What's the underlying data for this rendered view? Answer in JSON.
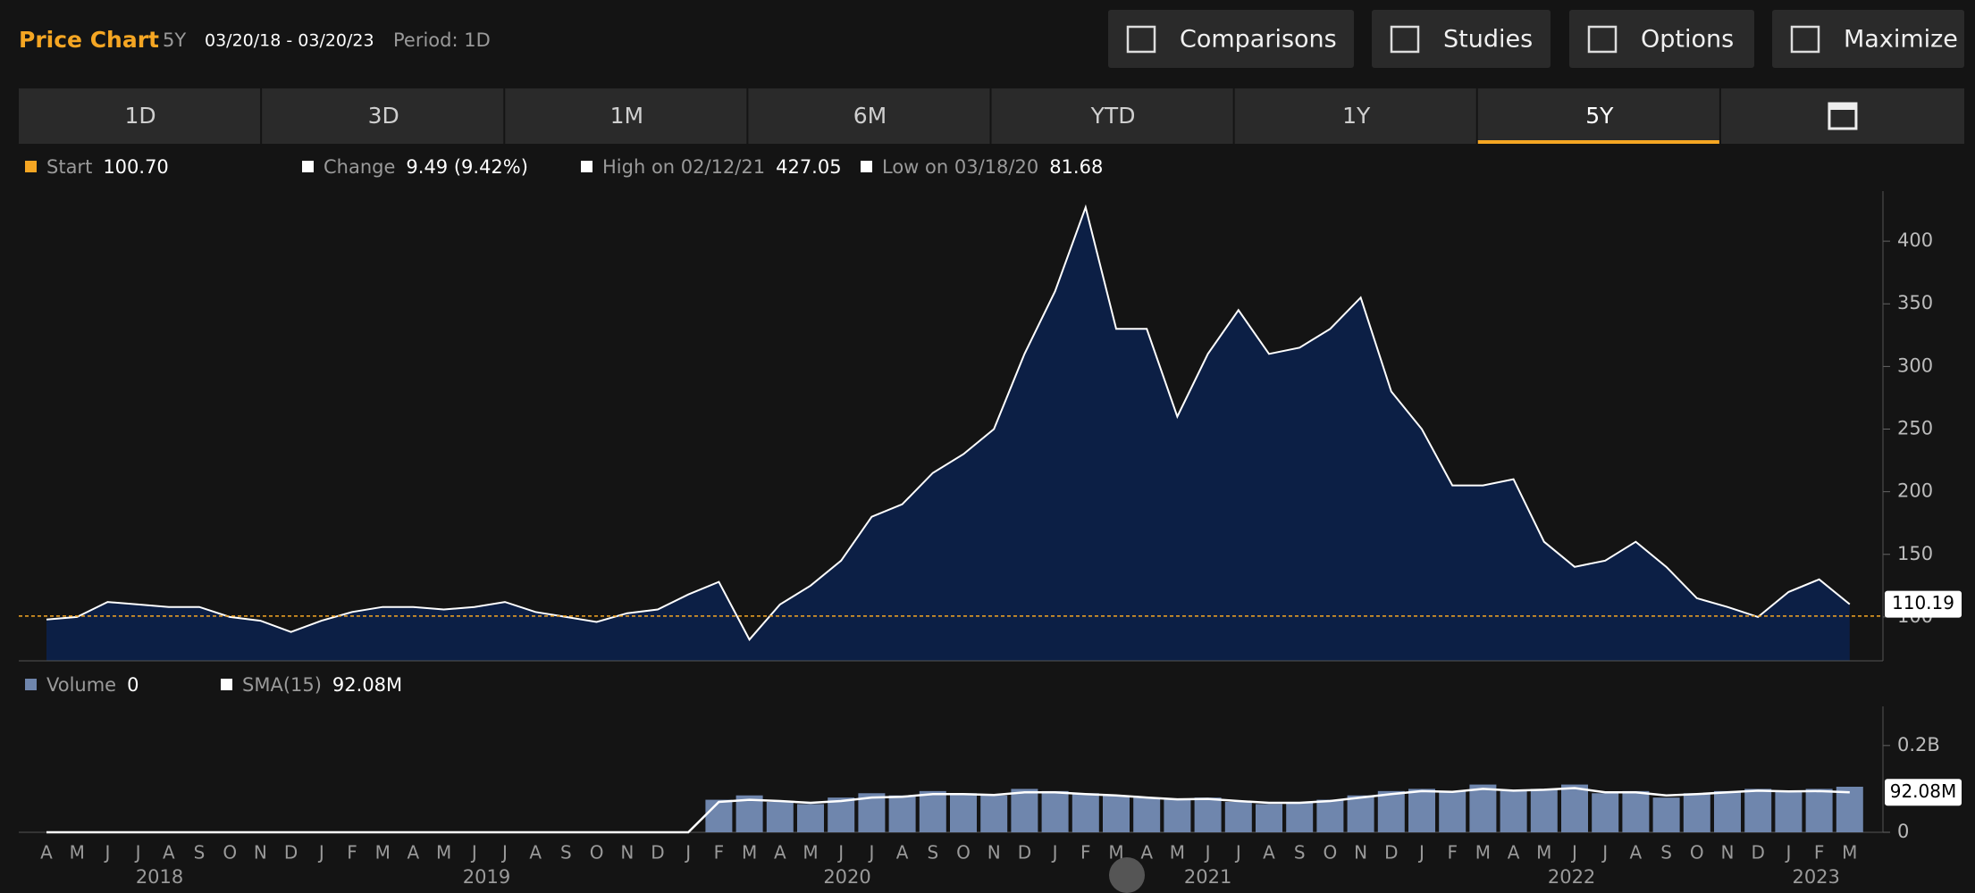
{
  "header": {
    "title": "Price Chart",
    "range": "5Y",
    "dates": "03/20/18 - 03/20/23",
    "period": "Period: 1D"
  },
  "buttons": [
    "Comparisons",
    "Studies",
    "Options",
    "Maximize"
  ],
  "tabs": {
    "items": [
      "1D",
      "3D",
      "1M",
      "6M",
      "YTD",
      "1Y",
      "5Y"
    ],
    "active": "5Y"
  },
  "stats": {
    "start_label": "Start",
    "change_label": "Change",
    "change_value": "9.49 (9.42%)",
    "high_label": "High on 02/12/21",
    "high_value": "427.05",
    "low_label": "Low on 03/18/20",
    "low_value": "81.68"
  },
  "chart_data": [
    {
      "type": "area",
      "color": "#0c1f45",
      "line_color": "#ffffff",
      "categories": [
        "A",
        "M",
        "J",
        "J",
        "A",
        "S",
        "O",
        "N",
        "D",
        "J",
        "F",
        "M",
        "A",
        "M",
        "J",
        "J",
        "A",
        "S",
        "O",
        "N",
        "D",
        "J",
        "F",
        "M",
        "A",
        "M",
        "J",
        "J",
        "A",
        "S",
        "O",
        "N",
        "D",
        "J",
        "F",
        "M",
        "A",
        "M",
        "J",
        "J",
        "A",
        "S",
        "O",
        "N",
        "D",
        "J",
        "F",
        "M",
        "A",
        "M",
        "J",
        "J",
        "A",
        "S",
        "O",
        "N",
        "D",
        "J",
        "F",
        "M"
      ],
      "year_labels": [
        "2018",
        "2019",
        "2020",
        "2021",
        "2022",
        "2023"
      ],
      "values": [
        98,
        100,
        112,
        110,
        108,
        108,
        100,
        97,
        88,
        97,
        104,
        108,
        108,
        106,
        108,
        112,
        104,
        100,
        96,
        103,
        106,
        118,
        128,
        82,
        110,
        125,
        145,
        180,
        190,
        215,
        230,
        250,
        310,
        360,
        427,
        330,
        330,
        260,
        310,
        345,
        310,
        315,
        330,
        355,
        280,
        250,
        205,
        205,
        210,
        160,
        140,
        145,
        160,
        140,
        115,
        108,
        100,
        120,
        130,
        110.19
      ],
      "reference_value": {
        "value": 100.7,
        "label": "100.70"
      },
      "reference_color": "#f5a623",
      "ylim": [
        65,
        440
      ],
      "yticks": [
        100,
        150,
        200,
        250,
        300,
        350,
        400
      ]
    },
    {
      "type": "bar",
      "series": [
        {
          "name": "Volume",
          "color": "#6f86ad",
          "readout": 0,
          "values": [
            0,
            0,
            0,
            0,
            0,
            0,
            0,
            0,
            0,
            0,
            0,
            0,
            0,
            0,
            0,
            0,
            0,
            0,
            0,
            0,
            0,
            0,
            75000000,
            85000000,
            70000000,
            65000000,
            80000000,
            90000000,
            85000000,
            95000000,
            90000000,
            85000000,
            100000000,
            95000000,
            90000000,
            85000000,
            80000000,
            75000000,
            80000000,
            70000000,
            65000000,
            70000000,
            75000000,
            85000000,
            95000000,
            100000000,
            95000000,
            110000000,
            95000000,
            100000000,
            110000000,
            90000000,
            95000000,
            80000000,
            90000000,
            95000000,
            100000000,
            95000000,
            100000000,
            105000000
          ]
        },
        {
          "name": "SMA(15)",
          "color": "#ffffff",
          "style": "line",
          "readout": "92.08M",
          "values": [
            0,
            0,
            0,
            0,
            0,
            0,
            0,
            0,
            0,
            0,
            0,
            0,
            0,
            0,
            0,
            0,
            0,
            0,
            0,
            0,
            0,
            0,
            70000000,
            75000000,
            72000000,
            68000000,
            72000000,
            80000000,
            82000000,
            88000000,
            88000000,
            86000000,
            92000000,
            92000000,
            88000000,
            85000000,
            80000000,
            76000000,
            77000000,
            72000000,
            68000000,
            68000000,
            72000000,
            80000000,
            88000000,
            95000000,
            93000000,
            100000000,
            96000000,
            98000000,
            102000000,
            92000000,
            92000000,
            85000000,
            88000000,
            92000000,
            96000000,
            94000000,
            95000000,
            92080000
          ]
        }
      ],
      "ylim": [
        0,
        280000000
      ],
      "yticks": [
        0,
        {
          "value": 200000000,
          "label": "0.2B"
        }
      ]
    }
  ]
}
